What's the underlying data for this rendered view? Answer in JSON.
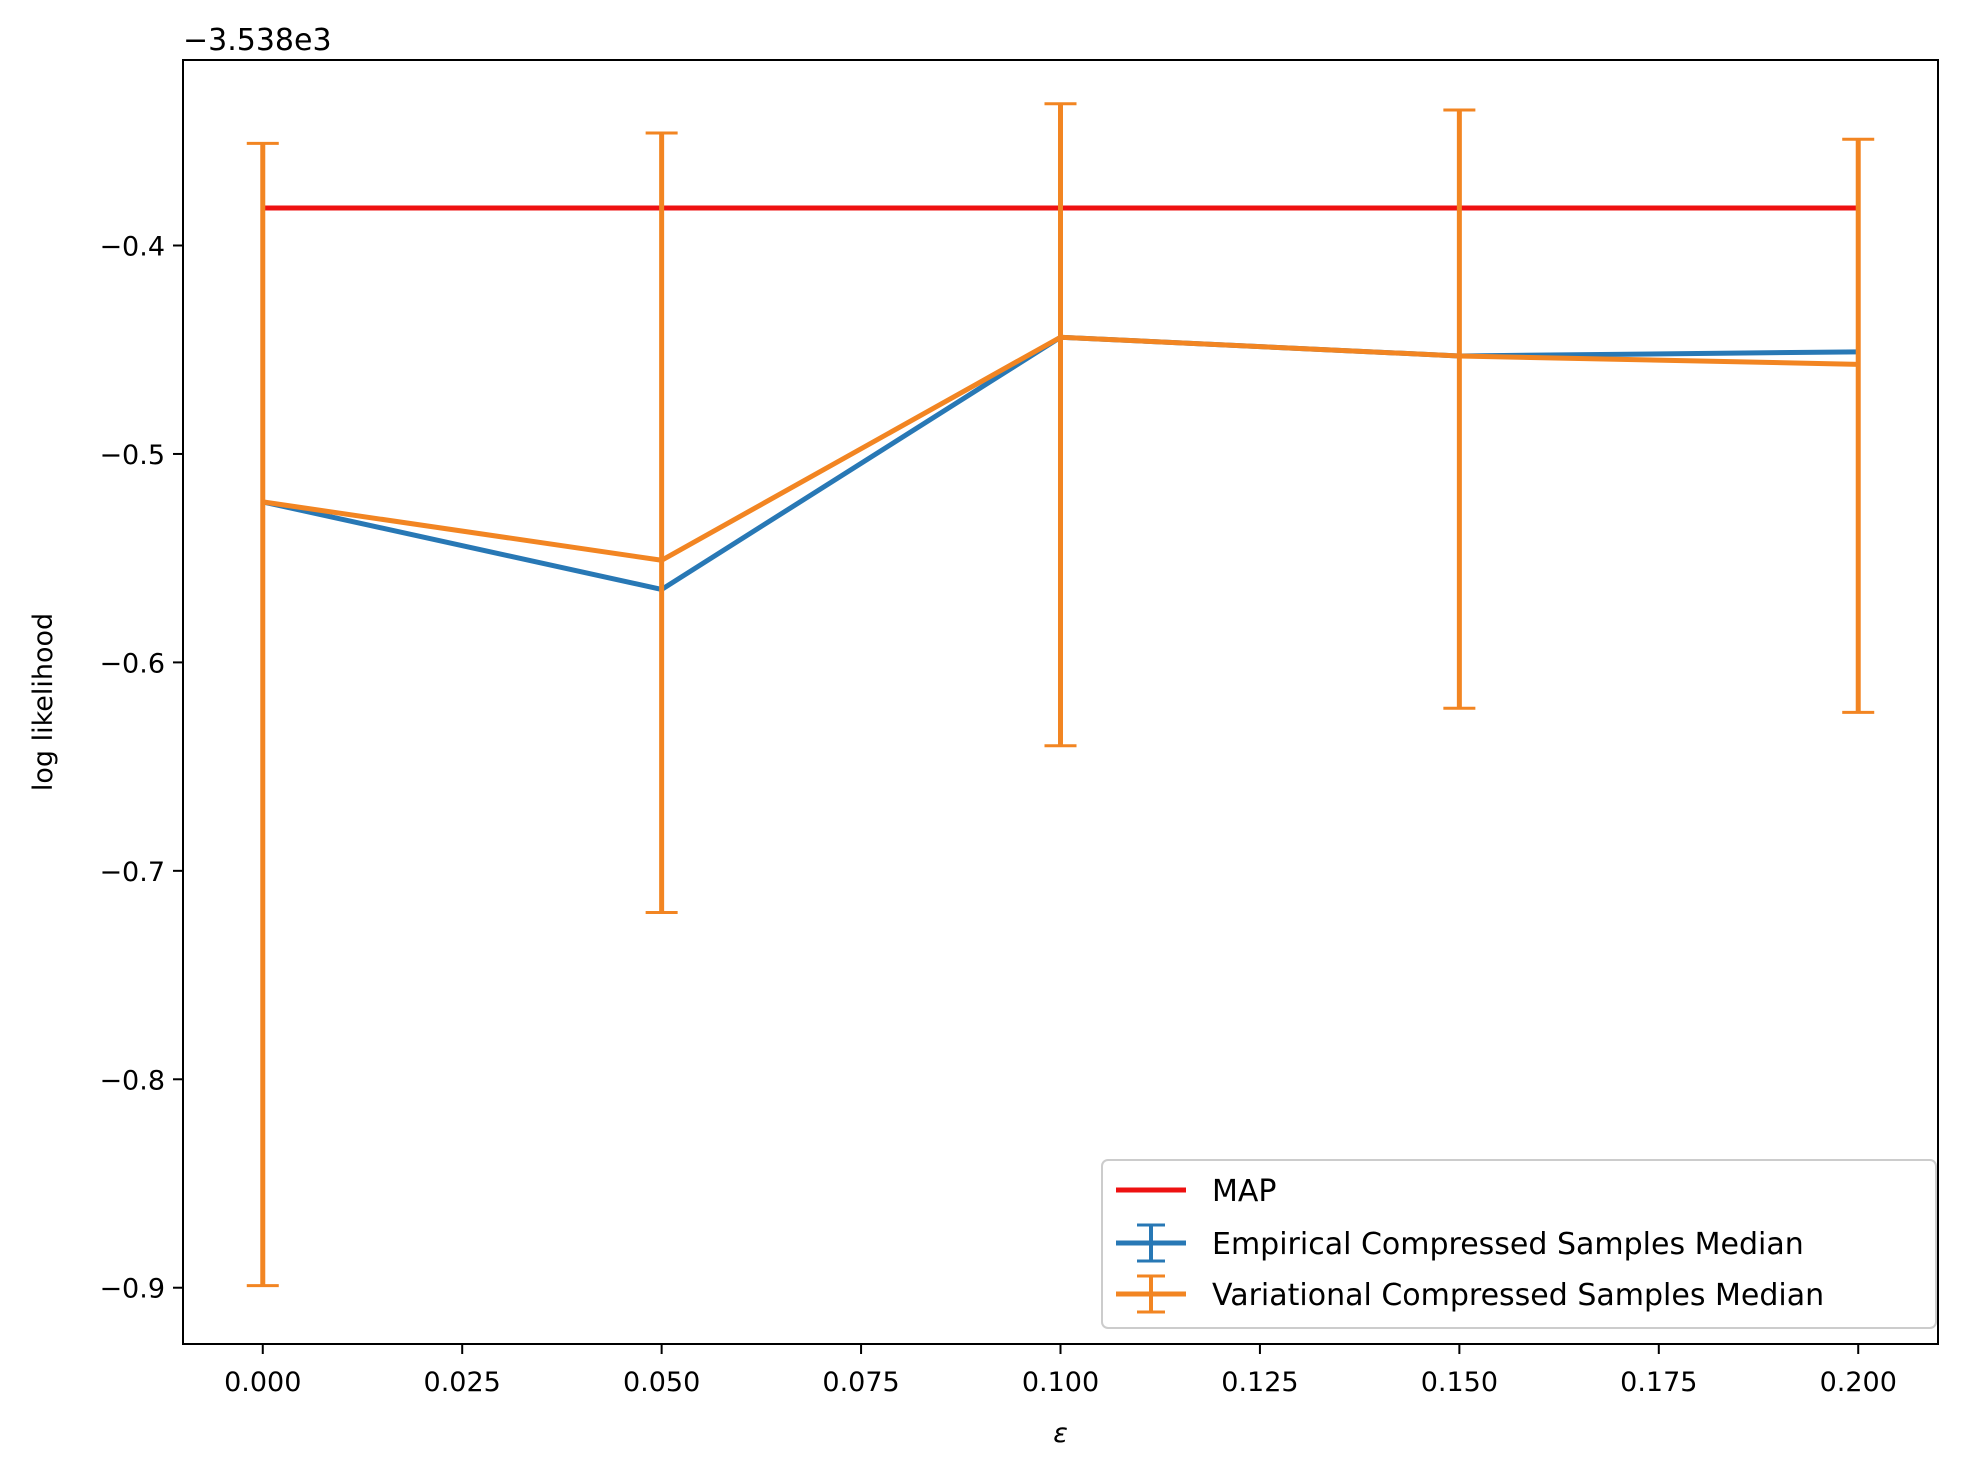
{
  "chart_data": {
    "type": "line",
    "title": "",
    "xlabel": "ε",
    "ylabel": "log likelihood",
    "y_offset_label": "−3.538e3",
    "y_offset": -3538,
    "xlim": [
      -0.01,
      0.21
    ],
    "ylim": [
      -0.927,
      -0.311
    ],
    "x_ticks": [
      0.0,
      0.025,
      0.05,
      0.075,
      0.1,
      0.125,
      0.15,
      0.175,
      0.2
    ],
    "x_tick_labels": [
      "0.000",
      "0.025",
      "0.050",
      "0.075",
      "0.100",
      "0.125",
      "0.150",
      "0.175",
      "0.200"
    ],
    "y_ticks": [
      -0.4,
      -0.5,
      -0.6,
      -0.7,
      -0.8,
      -0.9
    ],
    "y_tick_labels": [
      "−0.4",
      "−0.5",
      "−0.6",
      "−0.7",
      "−0.8",
      "−0.9"
    ],
    "grid": false,
    "legend_position": "lower-right",
    "x": [
      0.0,
      0.05,
      0.1,
      0.15,
      0.2
    ],
    "series": [
      {
        "name": "MAP",
        "kind": "line",
        "color": "#ee1111",
        "x": [
          0.0,
          0.2
        ],
        "values": [
          -0.382,
          -0.382
        ]
      },
      {
        "name": "Empirical Compressed Samples Median",
        "kind": "errorbar",
        "color": "#2878b5",
        "values": [
          -0.523,
          -0.565,
          -0.444,
          -0.453,
          -0.451
        ]
      },
      {
        "name": "Variational Compressed Samples Median",
        "kind": "errorbar",
        "color": "#f28522",
        "values": [
          -0.523,
          -0.551,
          -0.444,
          -0.453,
          -0.457
        ],
        "err_low": [
          -0.899,
          -0.72,
          -0.64,
          -0.622,
          -0.624
        ],
        "err_high": [
          -0.351,
          -0.346,
          -0.332,
          -0.335,
          -0.349
        ]
      }
    ]
  }
}
